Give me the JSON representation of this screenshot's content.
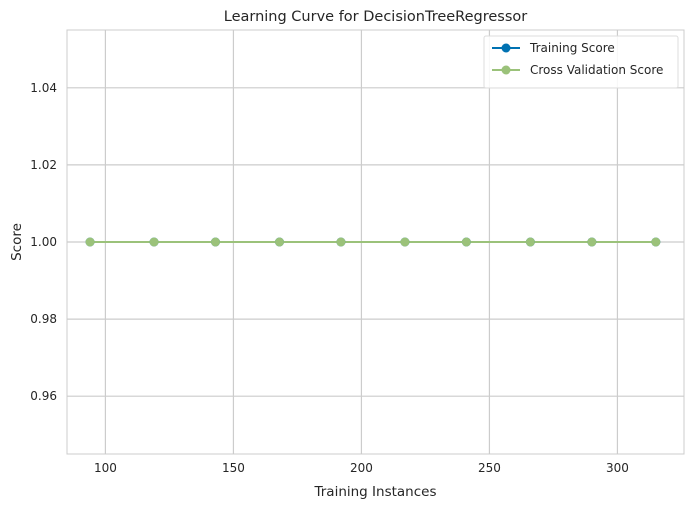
{
  "chart_data": {
    "type": "line",
    "title": "Learning Curve for DecisionTreeRegressor",
    "xlabel": "Training Instances",
    "ylabel": "Score",
    "xlim": [
      85,
      326
    ],
    "ylim": [
      0.945,
      1.055
    ],
    "xticks": [
      100,
      150,
      200,
      250,
      300
    ],
    "yticks": [
      0.96,
      0.98,
      1.0,
      1.02,
      1.04
    ],
    "ytick_labels": [
      "0.96",
      "0.98",
      "1.00",
      "1.02",
      "1.04"
    ],
    "grid": true,
    "legend_position": "top-right",
    "x": [
      94,
      119,
      143,
      168,
      192,
      217,
      241,
      266,
      290,
      315
    ],
    "series": [
      {
        "name": "Training Score",
        "color": "#0072B2",
        "values": [
          1.0,
          1.0,
          1.0,
          1.0,
          1.0,
          1.0,
          1.0,
          1.0,
          1.0,
          1.0
        ]
      },
      {
        "name": "Cross Validation Score",
        "color": "#9BC27A",
        "values": [
          1.0,
          1.0,
          1.0,
          1.0,
          1.0,
          1.0,
          1.0,
          1.0,
          1.0,
          1.0
        ]
      }
    ]
  }
}
